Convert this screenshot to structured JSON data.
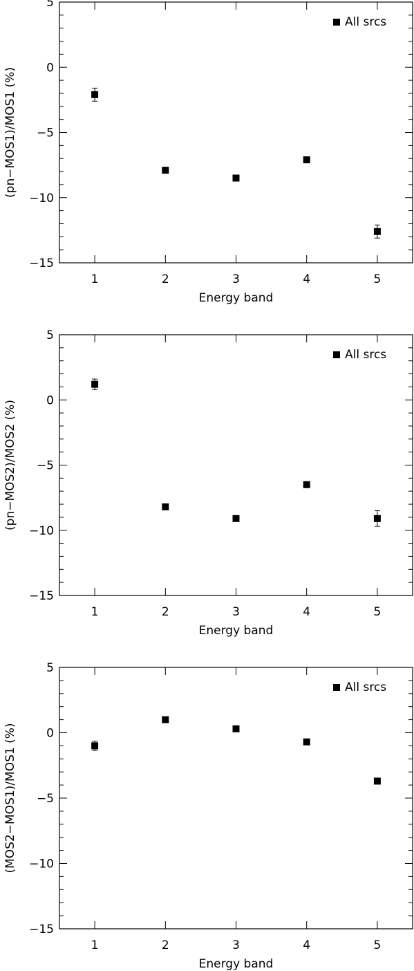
{
  "chart_data": [
    {
      "type": "scatter",
      "xlabel": "Energy band",
      "ylabel": "(pn−MOS1)/MOS1 (%)",
      "xlim": [
        0.5,
        5.5
      ],
      "ylim": [
        -15,
        5
      ],
      "xticks": [
        "1",
        "2",
        "3",
        "4",
        "5"
      ],
      "yticks": [
        "5",
        "0",
        "−5",
        "−10",
        "−15"
      ],
      "legend": {
        "label": "All srcs",
        "position": "top-right"
      },
      "series": [
        {
          "name": "All srcs",
          "x": [
            1,
            2,
            3,
            4,
            5
          ],
          "y": [
            -2.1,
            -7.9,
            -8.5,
            -7.1,
            -12.6
          ],
          "err": [
            0.5,
            0.15,
            0.15,
            0.15,
            0.5
          ]
        }
      ]
    },
    {
      "type": "scatter",
      "xlabel": "Energy band",
      "ylabel": "(pn−MOS2)/MOS2 (%)",
      "xlim": [
        0.5,
        5.5
      ],
      "ylim": [
        -15,
        5
      ],
      "xticks": [
        "1",
        "2",
        "3",
        "4",
        "5"
      ],
      "yticks": [
        "5",
        "0",
        "−5",
        "−10",
        "−15"
      ],
      "legend": {
        "label": "All srcs",
        "position": "top-right"
      },
      "series": [
        {
          "name": "All srcs",
          "x": [
            1,
            2,
            3,
            4,
            5
          ],
          "y": [
            1.2,
            -8.2,
            -9.1,
            -6.5,
            -9.1
          ],
          "err": [
            0.4,
            0.15,
            0.15,
            0.15,
            0.6
          ]
        }
      ]
    },
    {
      "type": "scatter",
      "xlabel": "Energy band",
      "ylabel": "(MOS2−MOS1)/MOS1 (%)",
      "xlim": [
        0.5,
        5.5
      ],
      "ylim": [
        -15,
        5
      ],
      "xticks": [
        "1",
        "2",
        "3",
        "4",
        "5"
      ],
      "yticks": [
        "5",
        "0",
        "−5",
        "−10",
        "−15"
      ],
      "legend": {
        "label": "All srcs",
        "position": "top-right"
      },
      "series": [
        {
          "name": "All srcs",
          "x": [
            1,
            2,
            3,
            4,
            5
          ],
          "y": [
            -1.0,
            1.0,
            0.3,
            -0.7,
            -3.7
          ],
          "err": [
            0.35,
            0.15,
            0.15,
            0.15,
            0.15
          ]
        }
      ]
    }
  ]
}
